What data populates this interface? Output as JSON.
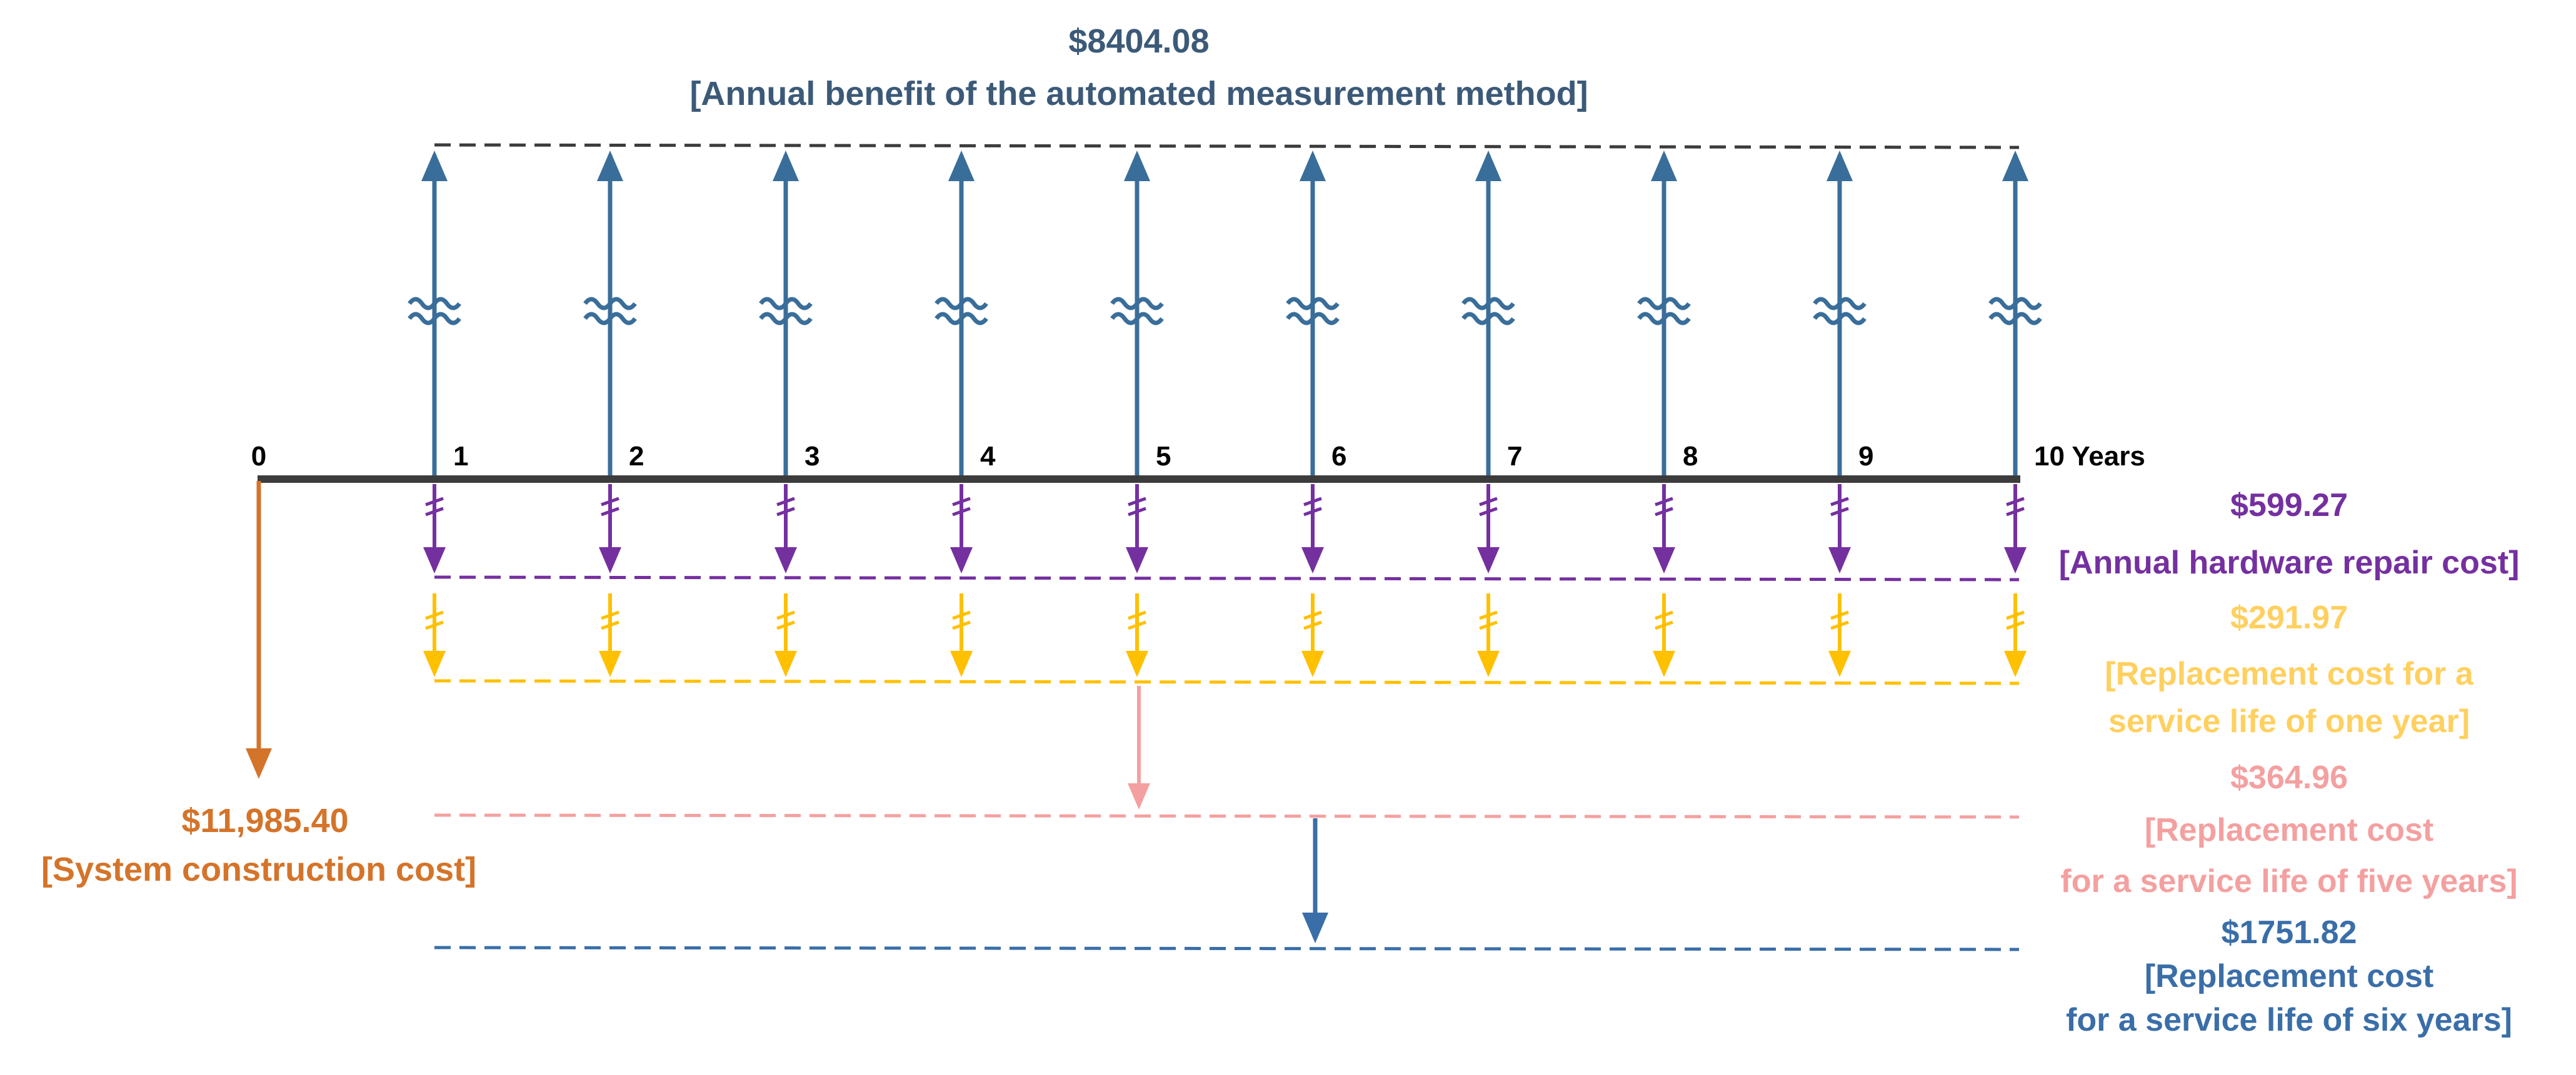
{
  "colors": {
    "benefit": "#3a6e9a",
    "benefit_text": "#3c5a78",
    "timeline": "#3c3c3c",
    "construction": "#d4742a",
    "repair": "#7530a0",
    "replace_one_year": "#ffc000",
    "replace_one_year_text": "#ffd060",
    "replace_five_years": "#f4a0a0",
    "replace_six_years": "#3a6ea8"
  },
  "timeline": {
    "ticks": [
      "0",
      "1",
      "2",
      "3",
      "4",
      "5",
      "6",
      "7",
      "8",
      "9",
      "10 Years"
    ]
  },
  "annual_benefit": {
    "amount": "$8404.08",
    "label": "[Annual benefit of the automated measurement method]"
  },
  "construction": {
    "amount": "$11,985.40",
    "label": "[System construction cost]"
  },
  "hardware_repair": {
    "amount": "$599.27",
    "label": "[Annual hardware repair cost]"
  },
  "replacement_one_year": {
    "amount": "$291.97",
    "label_line1": "[Replacement cost for a",
    "label_line2": "service life of one year]"
  },
  "replacement_five_years": {
    "amount": "$364.96",
    "label_line1": "[Replacement cost",
    "label_line2": "for a service life of five years]"
  },
  "replacement_six_years": {
    "amount": "$1751.82",
    "label_line1": "[Replacement cost",
    "label_line2": "for a service life of six years]"
  }
}
